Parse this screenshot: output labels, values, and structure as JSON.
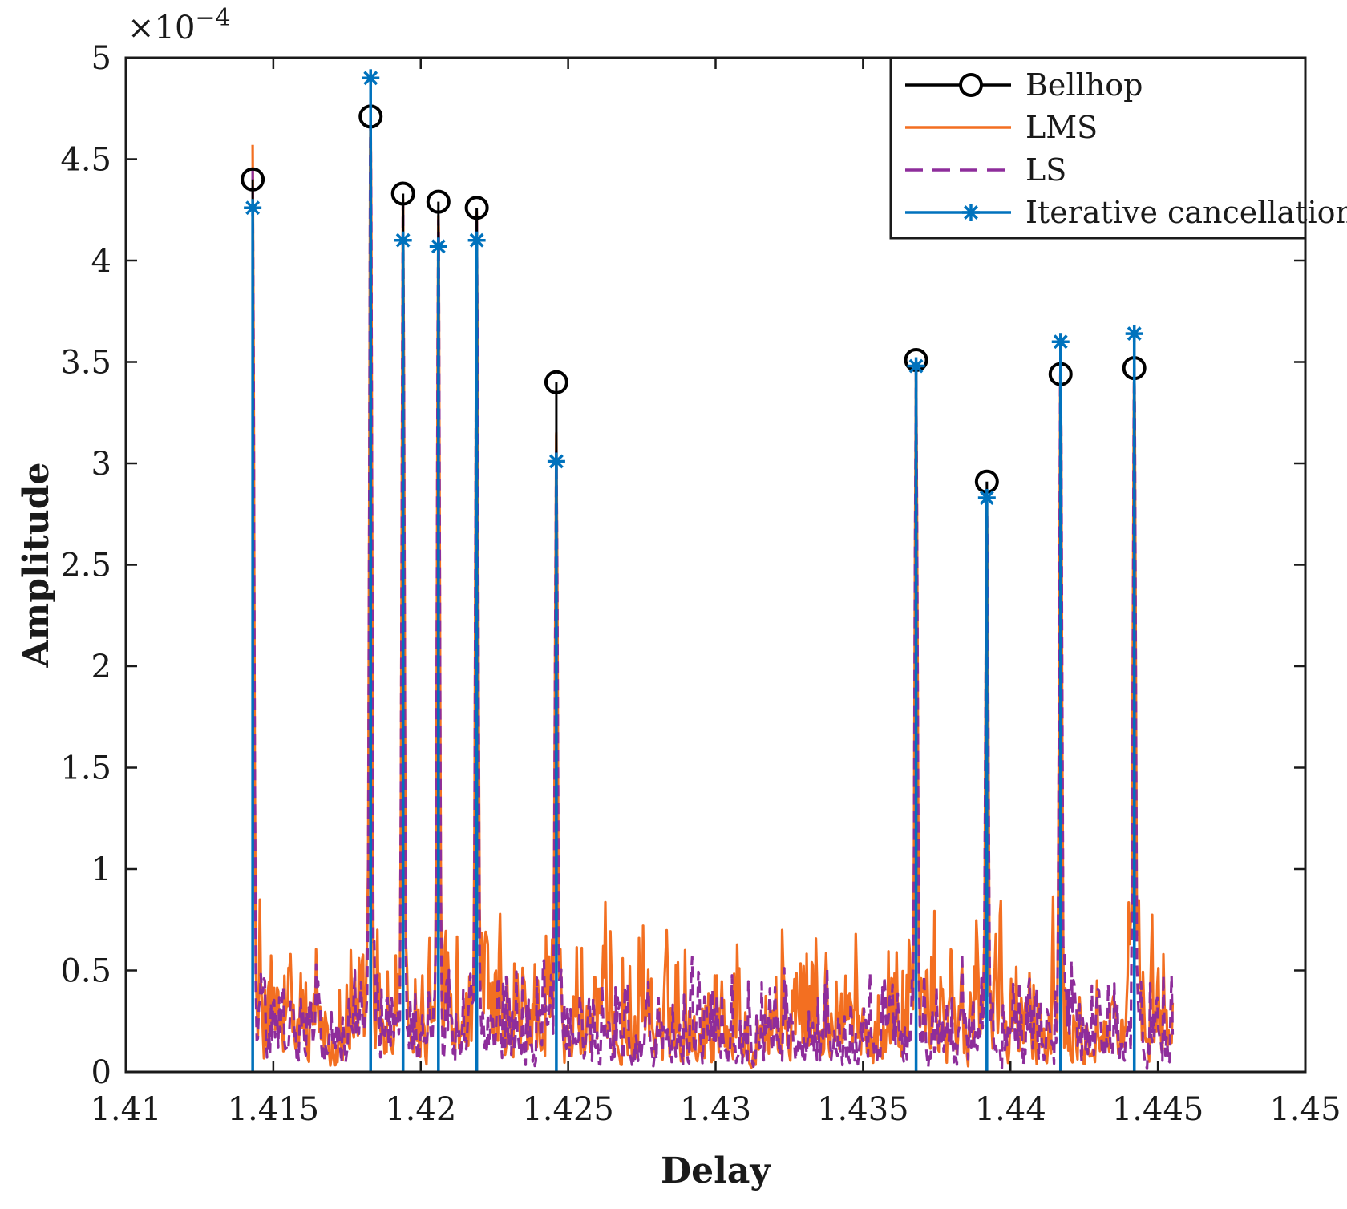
{
  "chart_data": {
    "type": "line",
    "title": "",
    "xlabel": "Delay",
    "ylabel": "Amplitude",
    "y_exponent_label": "×10",
    "y_exponent_power": "−4",
    "xlim": [
      1.41,
      1.45
    ],
    "ylim": [
      0,
      5
    ],
    "x_ticks": [
      1.41,
      1.415,
      1.42,
      1.425,
      1.43,
      1.435,
      1.44,
      1.445,
      1.45
    ],
    "x_tick_labels": [
      "1.41",
      "1.415",
      "1.42",
      "1.425",
      "1.43",
      "1.435",
      "1.44",
      "1.445",
      "1.45"
    ],
    "y_ticks": [
      0,
      0.5,
      1,
      1.5,
      2,
      2.5,
      3,
      3.5,
      4,
      4.5,
      5
    ],
    "y_tick_labels": [
      "0",
      "0.5",
      "1",
      "1.5",
      "2",
      "2.5",
      "3",
      "3.5",
      "4",
      "4.5",
      "5"
    ],
    "grid": false,
    "legend_position": "top-right",
    "noise_x_range": [
      1.4143,
      1.4455
    ],
    "series": [
      {
        "name": "Bellhop",
        "style": "stem-circle",
        "color": "#000000",
        "x": [
          1.4143,
          1.4183,
          1.4194,
          1.4206,
          1.4219,
          1.4246,
          1.4368,
          1.4392,
          1.4417,
          1.4442
        ],
        "y": [
          4.4,
          4.71,
          4.33,
          4.29,
          4.26,
          3.4,
          3.51,
          2.91,
          3.44,
          3.47
        ]
      },
      {
        "name": "LMS",
        "style": "solid",
        "color": "#f36f21",
        "x": [
          1.4143,
          1.4183,
          1.4194,
          1.4206,
          1.4219,
          1.4246,
          1.4368,
          1.4392,
          1.4417,
          1.4442
        ],
        "y": [
          4.57,
          4.75,
          4.3,
          4.22,
          4.24,
          3.15,
          3.5,
          2.87,
          3.5,
          3.48
        ],
        "noise_level": 0.42
      },
      {
        "name": "LS",
        "style": "dashed",
        "color": "#8e2d9b",
        "x": [
          1.4143,
          1.4183,
          1.4194,
          1.4206,
          1.4219,
          1.4246,
          1.4368,
          1.4392,
          1.4417,
          1.4442
        ],
        "y": [
          4.45,
          4.72,
          4.28,
          4.2,
          4.22,
          3.08,
          3.45,
          2.85,
          3.52,
          3.5
        ],
        "noise_level": 0.3
      },
      {
        "name": "Iterative cancellation",
        "style": "stem-star",
        "color": "#0072bd",
        "x": [
          1.4143,
          1.4183,
          1.4194,
          1.4206,
          1.4219,
          1.4246,
          1.4368,
          1.4392,
          1.4417,
          1.4442
        ],
        "y": [
          4.26,
          4.9,
          4.1,
          4.07,
          4.1,
          3.01,
          3.48,
          2.83,
          3.6,
          3.64
        ]
      }
    ]
  }
}
